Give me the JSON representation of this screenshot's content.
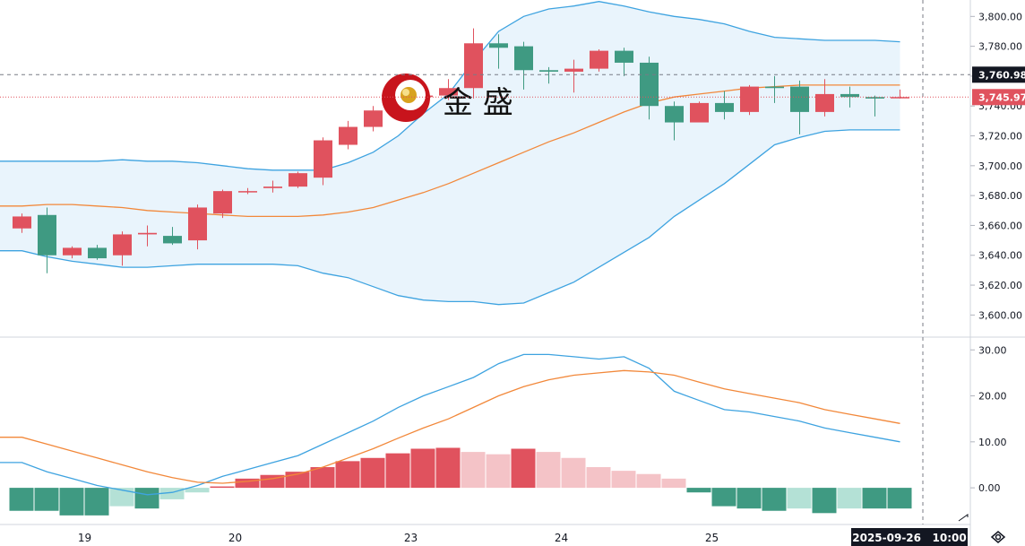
{
  "logo": {
    "text": "金 盛"
  },
  "chart_data": [
    {
      "type": "candlestick",
      "panel": "price",
      "colors": {
        "up": "#e0525e",
        "down": "#3f9a82",
        "band_line": "#3ea3e0",
        "band_fill": "#e9f4fc",
        "ma": "#f2883a"
      },
      "ylim": [
        3590,
        3808
      ],
      "yticks": [
        "3,800.00",
        "3,780.00",
        "3,760.00",
        "3,740.00",
        "3,720.00",
        "3,700.00",
        "3,680.00",
        "3,660.00",
        "3,640.00",
        "3,620.00",
        "3,600.00"
      ],
      "ytick_values": [
        3800,
        3780,
        3760,
        3740,
        3720,
        3700,
        3680,
        3660,
        3640,
        3620,
        3600
      ],
      "price_flags": [
        {
          "label": "3,760.98",
          "value": 3760.98,
          "color": "#131722"
        },
        {
          "label": "3,745.97",
          "value": 3745.97,
          "color": "#e0525e"
        }
      ],
      "candles": [
        {
          "o": 3658,
          "h": 3668,
          "l": 3655,
          "c": 3666
        },
        {
          "o": 3667,
          "h": 3672,
          "l": 3628,
          "c": 3640
        },
        {
          "o": 3640,
          "h": 3646,
          "l": 3638,
          "c": 3645
        },
        {
          "o": 3645,
          "h": 3647,
          "l": 3637,
          "c": 3638
        },
        {
          "o": 3640,
          "h": 3656,
          "l": 3633,
          "c": 3654
        },
        {
          "o": 3654,
          "h": 3660,
          "l": 3646,
          "c": 3655
        },
        {
          "o": 3653,
          "h": 3659,
          "l": 3647,
          "c": 3648
        },
        {
          "o": 3650,
          "h": 3674,
          "l": 3644,
          "c": 3672
        },
        {
          "o": 3668,
          "h": 3684,
          "l": 3665,
          "c": 3683
        },
        {
          "o": 3683,
          "h": 3685,
          "l": 3681,
          "c": 3683
        },
        {
          "o": 3685,
          "h": 3690,
          "l": 3682,
          "c": 3686
        },
        {
          "o": 3686,
          "h": 3696,
          "l": 3685,
          "c": 3695
        },
        {
          "o": 3692,
          "h": 3719,
          "l": 3687,
          "c": 3717
        },
        {
          "o": 3714,
          "h": 3730,
          "l": 3711,
          "c": 3726
        },
        {
          "o": 3726,
          "h": 3740,
          "l": 3723,
          "c": 3737
        },
        {
          "o": 3737,
          "h": 3750,
          "l": 3733,
          "c": 3746
        },
        {
          "o": 3746,
          "h": 3752,
          "l": 3742,
          "c": 3747
        },
        {
          "o": 3747,
          "h": 3758,
          "l": 3744,
          "c": 3752
        },
        {
          "o": 3752,
          "h": 3792,
          "l": 3745,
          "c": 3782
        },
        {
          "o": 3782,
          "h": 3788,
          "l": 3765,
          "c": 3779
        },
        {
          "o": 3780,
          "h": 3783,
          "l": 3751,
          "c": 3764
        },
        {
          "o": 3764,
          "h": 3766,
          "l": 3755,
          "c": 3763
        },
        {
          "o": 3763,
          "h": 3771,
          "l": 3749,
          "c": 3765
        },
        {
          "o": 3765,
          "h": 3778,
          "l": 3763,
          "c": 3777
        },
        {
          "o": 3777,
          "h": 3779,
          "l": 3760,
          "c": 3769
        },
        {
          "o": 3769,
          "h": 3773,
          "l": 3731,
          "c": 3740
        },
        {
          "o": 3740,
          "h": 3743,
          "l": 3717,
          "c": 3729
        },
        {
          "o": 3729,
          "h": 3743,
          "l": 3729,
          "c": 3742
        },
        {
          "o": 3742,
          "h": 3750,
          "l": 3731,
          "c": 3736
        },
        {
          "o": 3736,
          "h": 3754,
          "l": 3734,
          "c": 3753
        },
        {
          "o": 3753,
          "h": 3760,
          "l": 3742,
          "c": 3752
        },
        {
          "o": 3753,
          "h": 3757,
          "l": 3721,
          "c": 3736
        },
        {
          "o": 3736,
          "h": 3758,
          "l": 3733,
          "c": 3748
        },
        {
          "o": 3748,
          "h": 3753,
          "l": 3739,
          "c": 3746
        },
        {
          "o": 3746,
          "h": 3747,
          "l": 3733,
          "c": 3745
        },
        {
          "o": 3746,
          "h": 3751,
          "l": 3745,
          "c": 3746
        }
      ],
      "band_upper": [
        3703,
        3703,
        3703,
        3703,
        3704,
        3703,
        3703,
        3702,
        3700,
        3698,
        3697,
        3697,
        3697,
        3702,
        3709,
        3720,
        3735,
        3748,
        3770,
        3790,
        3800,
        3805,
        3807,
        3810,
        3807,
        3803,
        3800,
        3798,
        3795,
        3790,
        3786,
        3785,
        3784,
        3784,
        3784,
        3783
      ],
      "band_lower": [
        3643,
        3639,
        3636,
        3634,
        3632,
        3632,
        3633,
        3634,
        3634,
        3634,
        3634,
        3633,
        3628,
        3625,
        3619,
        3613,
        3610,
        3609,
        3609,
        3607,
        3608,
        3615,
        3622,
        3632,
        3642,
        3652,
        3666,
        3677,
        3688,
        3701,
        3714,
        3719,
        3723,
        3724,
        3724,
        3724
      ],
      "ma": [
        3673,
        3674,
        3674,
        3673,
        3672,
        3670,
        3669,
        3668,
        3667,
        3666,
        3666,
        3666,
        3667,
        3669,
        3672,
        3677,
        3682,
        3688,
        3695,
        3702,
        3709,
        3716,
        3722,
        3729,
        3736,
        3742,
        3746,
        3748,
        3750,
        3752,
        3753,
        3754,
        3754,
        3754,
        3754,
        3754
      ],
      "x_labels": [
        {
          "label": "19",
          "index": 2.5
        },
        {
          "label": "20",
          "index": 8.5
        },
        {
          "label": "23",
          "index": 15.5
        },
        {
          "label": "24",
          "index": 21.5
        },
        {
          "label": "25",
          "index": 27.5
        },
        {
          "label": "26",
          "index": 33.5
        }
      ]
    },
    {
      "type": "macd",
      "panel": "oscillator",
      "ylim": [
        -7,
        32
      ],
      "yticks": [
        "30.00",
        "20.00",
        "10.00",
        "0.00"
      ],
      "ytick_values": [
        30,
        20,
        10,
        0
      ],
      "colors": {
        "pos_strong": "#e0525e",
        "pos_weak": "#f4c3c7",
        "neg_strong": "#3f9a82",
        "neg_weak": "#b4e1d6",
        "macd": "#3ea3e0",
        "signal": "#f2883a"
      },
      "macd_line": [
        5.5,
        3.5,
        2,
        0.5,
        -0.5,
        -1.5,
        -1,
        0.5,
        2.5,
        4,
        5.5,
        7,
        9.5,
        12,
        14.5,
        17.5,
        20,
        22,
        24,
        27,
        29,
        29,
        28.5,
        28,
        28.5,
        26,
        21,
        19,
        17,
        16.5,
        15.5,
        14.5,
        13,
        12,
        11,
        10
      ],
      "signal_line": [
        11,
        9.5,
        8,
        6.5,
        5,
        3.5,
        2.2,
        1.2,
        1,
        1.4,
        2,
        3,
        4.5,
        6.5,
        8.5,
        10.8,
        13,
        15,
        17.5,
        20,
        22,
        23.5,
        24.5,
        25,
        25.5,
        25.2,
        24.5,
        23,
        21.5,
        20.5,
        19.5,
        18.5,
        17,
        16,
        15,
        14
      ],
      "histogram": [
        -5,
        -5,
        -6,
        -6,
        -4,
        -4.5,
        -2.5,
        -1,
        0.3,
        2,
        2.8,
        3.5,
        4.5,
        5.8,
        6.5,
        7.5,
        8.5,
        8.7,
        7.8,
        7.3,
        8.5,
        7.8,
        6.5,
        4.5,
        3.7,
        3,
        2,
        -1,
        -4,
        -4.5,
        -5,
        -4.5,
        -5.5,
        -4.5,
        -4.5,
        -4.5
      ]
    }
  ],
  "crosshair": {
    "price_label": "3,760.98",
    "time_label": "2025-09-26   10:00"
  },
  "footer_icon": "settings-eye-icon"
}
